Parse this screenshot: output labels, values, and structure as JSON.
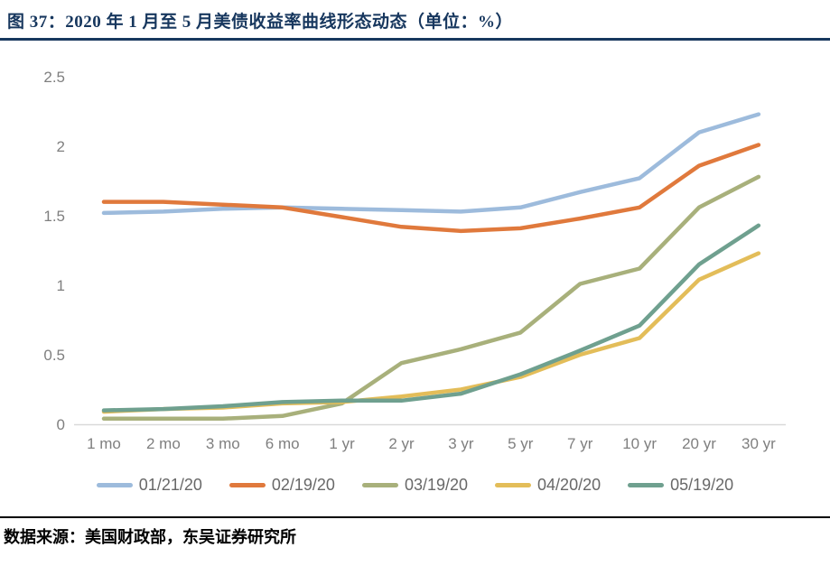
{
  "header": {
    "title": "图 37：2020 年 1 月至 5 月美债收益率曲线形态动态（单位：%）"
  },
  "footer": {
    "source": "数据来源：美国财政部，东吴证券研究所"
  },
  "colors": {
    "title": "#17375E",
    "top_divider": "#17375E",
    "bottom_divider": "#000000",
    "axis_line": "#D9D9D9",
    "tick_label": "#7F7F7F",
    "legend_label": "#686868"
  },
  "chart_data": {
    "type": "line",
    "title": "2020 年 1 月至 5 月美债收益率曲线形态动态",
    "unit": "%",
    "categories": [
      "1 mo",
      "2 mo",
      "3 mo",
      "6 mo",
      "1 yr",
      "2 yr",
      "3 yr",
      "5 yr",
      "7 yr",
      "10 yr",
      "20 yr",
      "30 yr"
    ],
    "series": [
      {
        "name": "01/21/20",
        "color": "#9DBBDC",
        "values": [
          1.52,
          1.53,
          1.55,
          1.56,
          1.55,
          1.54,
          1.53,
          1.56,
          1.67,
          1.77,
          2.1,
          2.23
        ]
      },
      {
        "name": "02/19/20",
        "color": "#E0793C",
        "values": [
          1.6,
          1.6,
          1.58,
          1.56,
          1.49,
          1.42,
          1.39,
          1.41,
          1.48,
          1.56,
          1.86,
          2.01
        ]
      },
      {
        "name": "03/19/20",
        "color": "#A8B07B",
        "values": [
          0.04,
          0.04,
          0.04,
          0.06,
          0.15,
          0.44,
          0.54,
          0.66,
          1.01,
          1.12,
          1.56,
          1.78
        ]
      },
      {
        "name": "04/20/20",
        "color": "#E3BD59",
        "values": [
          0.09,
          0.11,
          0.12,
          0.15,
          0.16,
          0.2,
          0.25,
          0.34,
          0.5,
          0.62,
          1.04,
          1.23
        ]
      },
      {
        "name": "05/19/20",
        "color": "#6FA08F",
        "values": [
          0.1,
          0.11,
          0.13,
          0.16,
          0.17,
          0.17,
          0.22,
          0.36,
          0.53,
          0.71,
          1.15,
          1.43
        ]
      }
    ],
    "xlabel": "",
    "ylabel": "",
    "ylim": [
      0,
      2.5
    ],
    "yticks": [
      "0",
      "0.5",
      "1",
      "1.5",
      "2",
      "2.5"
    ],
    "grid": false,
    "legend_position": "bottom"
  }
}
